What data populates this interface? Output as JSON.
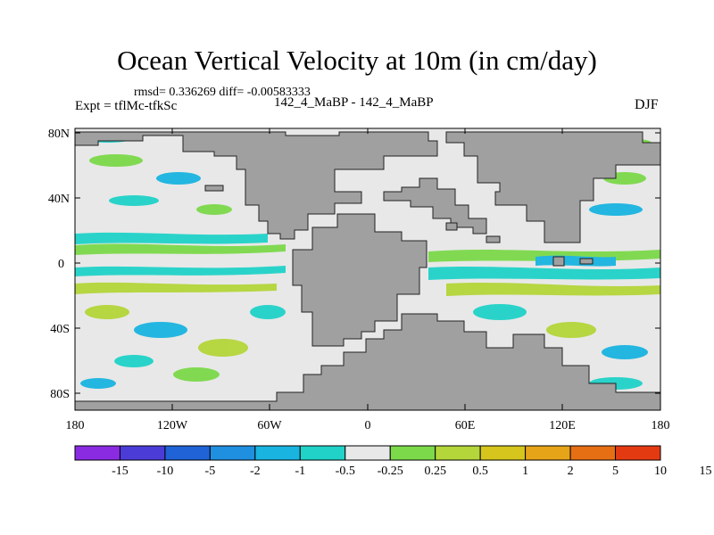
{
  "title": "Ocean Vertical Velocity at 10m (in cm/day)",
  "stats_line": "rmsd= 0.336269 diff= -0.00583333",
  "experiment": "Expt = tflMc-tfkSc",
  "comparison": "142_4_MaBP - 142_4_MaBP",
  "season": "DJF",
  "map": {
    "lat_labels": [
      "80N",
      "40N",
      "0",
      "40S",
      "80S"
    ],
    "lon_labels": [
      "180",
      "120W",
      "60W",
      "0",
      "60E",
      "120E",
      "180"
    ],
    "land_color": "#a0a0a0",
    "neutral_color": "#e8e8e8"
  },
  "colorbar": {
    "colors": [
      "#8a2be2",
      "#4b3cd8",
      "#1f63d6",
      "#1f8fe0",
      "#19b4e0",
      "#20d2c8",
      "#e8e8e8",
      "#7cd94a",
      "#b4d63a",
      "#d6c51c",
      "#e6a419",
      "#e66f14",
      "#e43a12"
    ],
    "labels": [
      "-15",
      "-10",
      "-5",
      "-2",
      "-1",
      "-0.5",
      "-0.25",
      "0.25",
      "0.5",
      "1",
      "2",
      "5",
      "10",
      "15"
    ]
  }
}
